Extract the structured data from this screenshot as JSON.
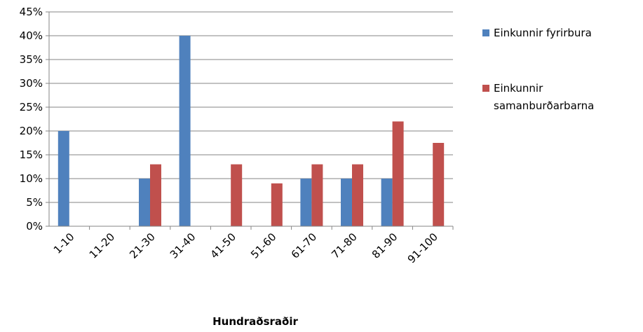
{
  "chart_data": {
    "type": "bar",
    "categories": [
      "1-10",
      "11-20",
      "21-30",
      "31-40",
      "41-50",
      "51-60",
      "61-70",
      "71-80",
      "81-90",
      "91-100"
    ],
    "series": [
      {
        "name": "Einkunnir fyrirbura",
        "color": "#4F81BD",
        "values": [
          20,
          0,
          10,
          40,
          0,
          0,
          10,
          10,
          10,
          0
        ]
      },
      {
        "name": "Einkunnir samanburðarbarna",
        "color": "#C0504D",
        "values": [
          0,
          0,
          13,
          0,
          13,
          9,
          13,
          13,
          22,
          17.5
        ]
      }
    ],
    "title": "",
    "xlabel": "Hundraðsraðir",
    "ylabel": "",
    "ylim": [
      0,
      45
    ],
    "yticks": [
      0,
      5,
      10,
      15,
      20,
      25,
      30,
      35,
      40,
      45
    ],
    "ytick_format": "%",
    "grid": true,
    "legend_position": "right",
    "legend_lines": [
      [
        "Einkunnir fyrirbura"
      ],
      [
        "Einkunnir",
        "samanburðarbarna"
      ]
    ]
  }
}
